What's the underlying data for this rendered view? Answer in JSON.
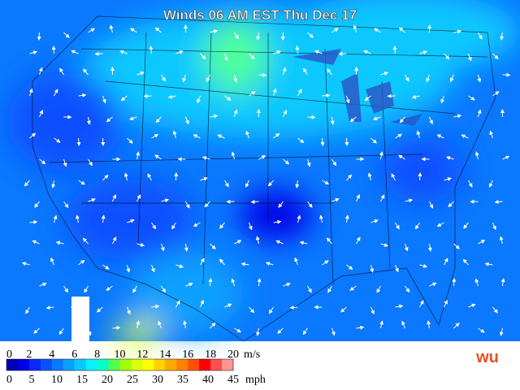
{
  "title": "Winds 06 AM EST Thu Dec 17",
  "legend": {
    "ms_labels": [
      0,
      2,
      4,
      6,
      8,
      10,
      12,
      14,
      16,
      18,
      20
    ],
    "ms_unit": "m/s",
    "mph_labels": [
      0,
      5,
      10,
      15,
      20,
      25,
      30,
      35,
      40,
      45
    ],
    "mph_unit": "mph",
    "colors": [
      "#0000b4",
      "#0000e6",
      "#0a28ff",
      "#0a50ff",
      "#0a78ff",
      "#0aa0ff",
      "#0ac8ff",
      "#0af0ff",
      "#0affc8",
      "#50ff50",
      "#a0ff0a",
      "#dcff0a",
      "#ffff00",
      "#ffd200",
      "#ffaa00",
      "#ff8200",
      "#ff5000",
      "#ff0000",
      "#ff5050",
      "#ff9696"
    ]
  },
  "logo": "wu"
}
